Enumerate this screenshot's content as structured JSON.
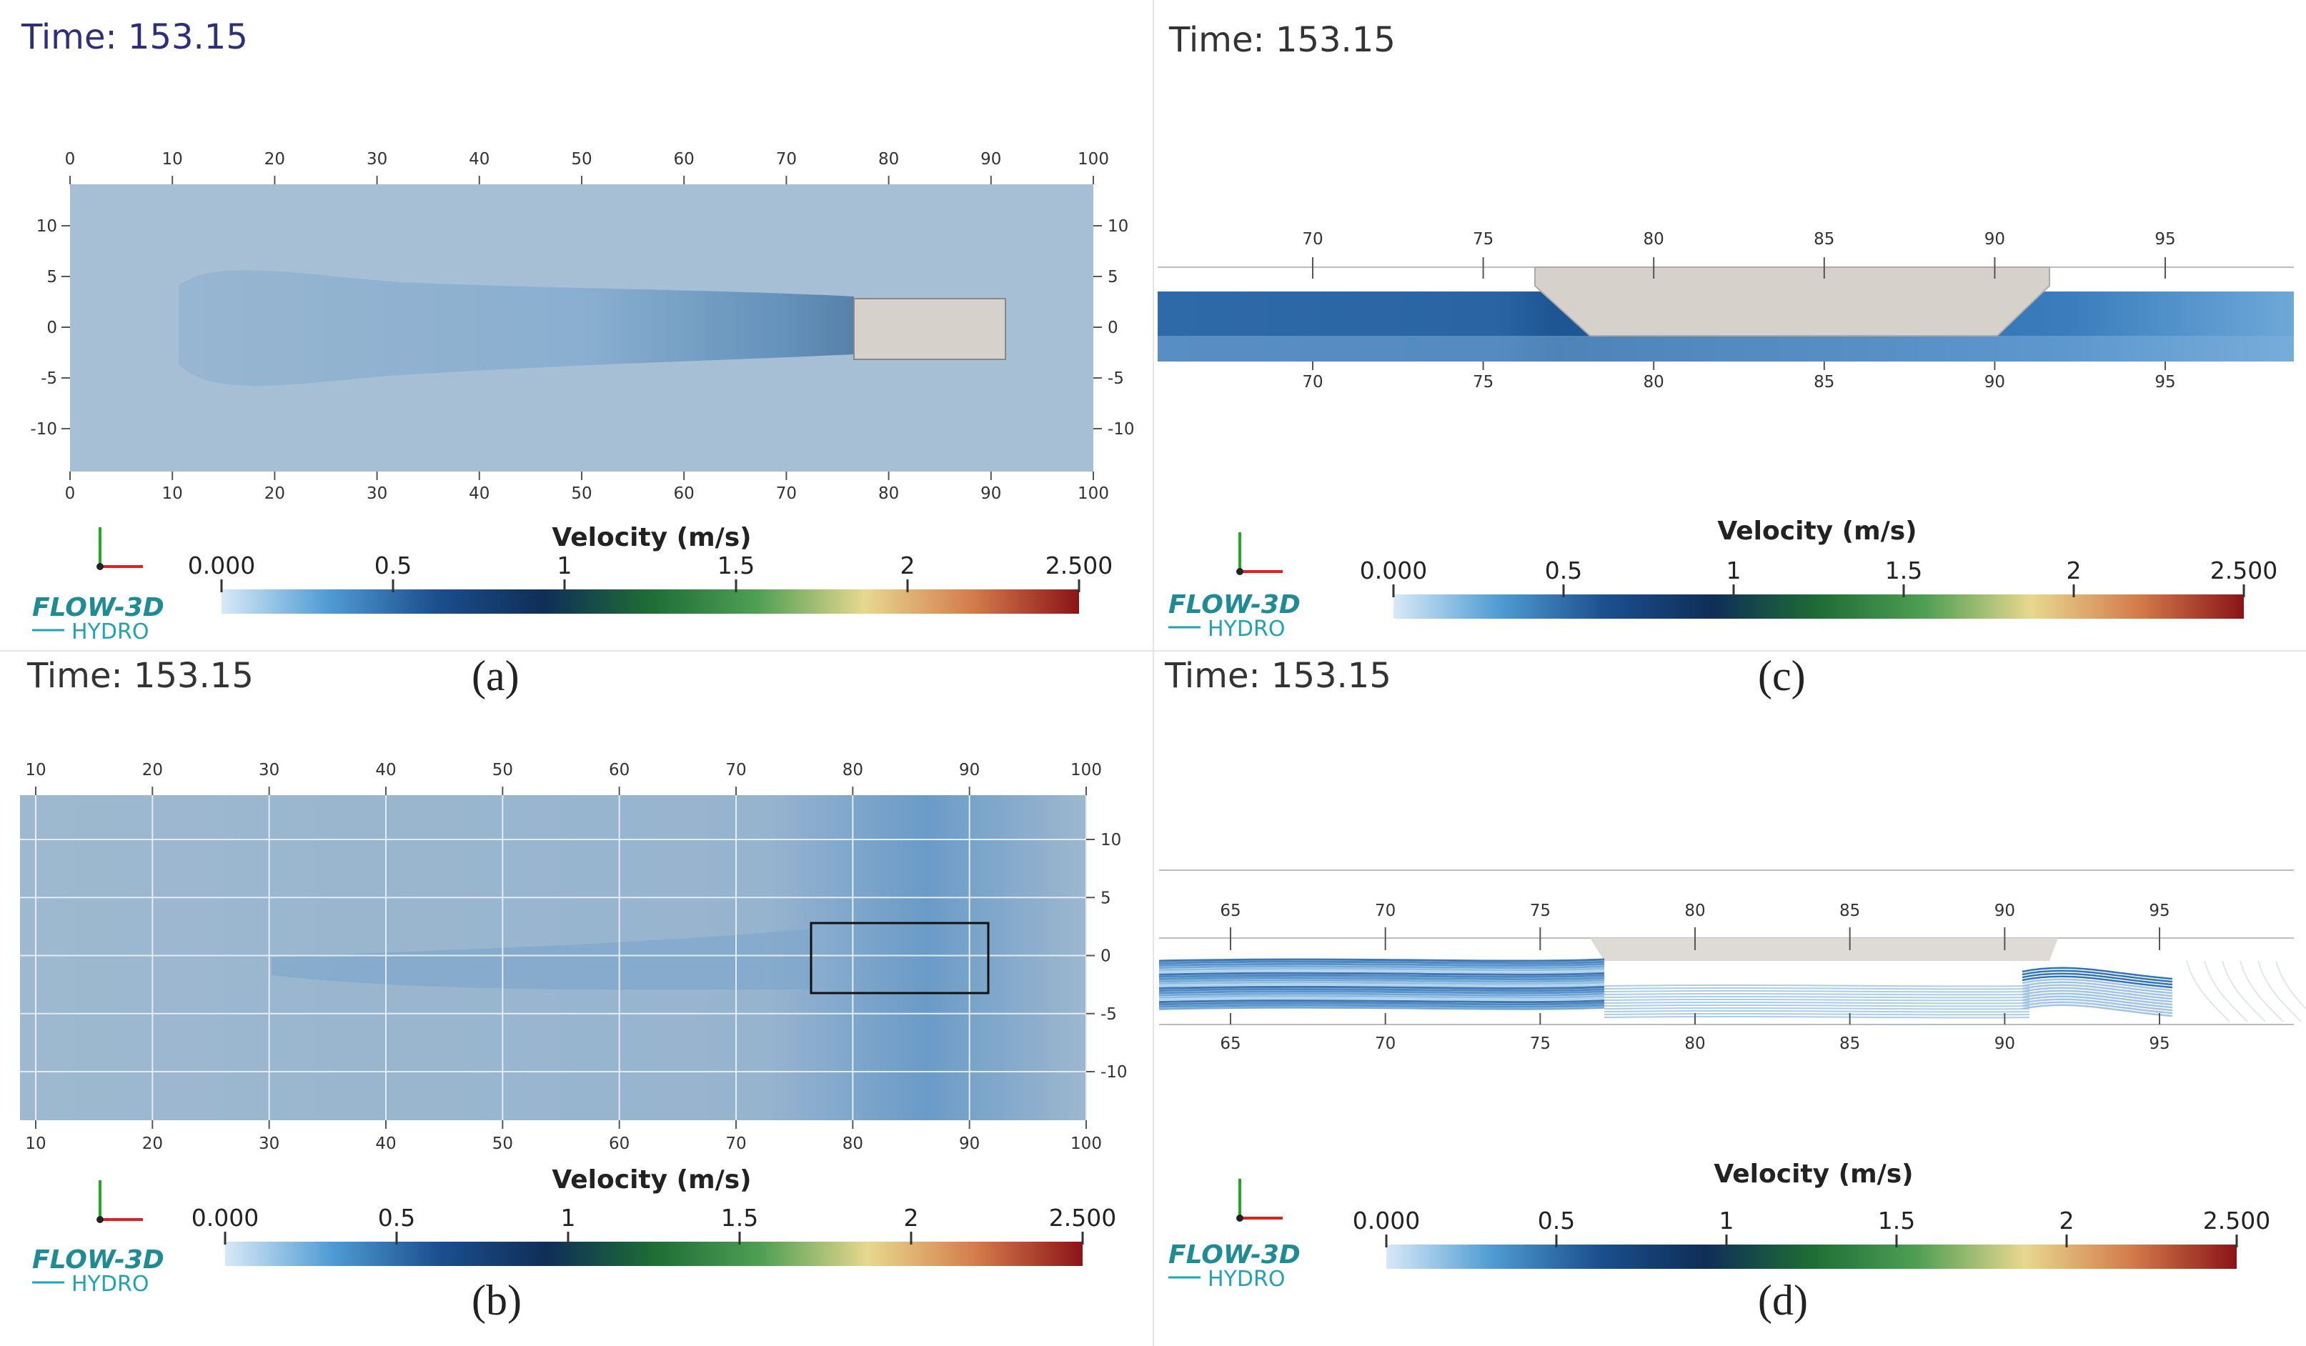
{
  "colorbar_colors": [
    "#d8e9f7",
    "#4f9bd3",
    "#1b4f8e",
    "#0f2e57",
    "#1e6d36",
    "#4f9f54",
    "#e7d88e",
    "#d47c4b",
    "#8b1418"
  ],
  "panels": [
    {
      "id": "a",
      "time": "Time: 153.15",
      "caption": "(a)",
      "view": "plan",
      "x_ticks_top": [
        "0",
        "10",
        "20",
        "30",
        "40",
        "50",
        "60",
        "70",
        "80",
        "90",
        "100"
      ],
      "x_ticks_bottom": [
        "0",
        "10",
        "20",
        "30",
        "40",
        "50",
        "60",
        "70",
        "80",
        "90",
        "100"
      ],
      "y_ticks_left": [
        "10",
        "5",
        "0",
        "-5",
        "-10"
      ],
      "y_ticks_right": [
        "10",
        "5",
        "0",
        "-5",
        "-10"
      ],
      "colorbar": {
        "title": "Velocity (m/s)",
        "ticks": [
          "0.000",
          "0.5",
          "1",
          "1.5",
          "2",
          "2.500"
        ]
      },
      "logo": {
        "line1": "FLOW-3D",
        "line2": "HYDRO"
      }
    },
    {
      "id": "b",
      "time": "Time: 153.15",
      "caption": "(b)",
      "view": "plan-grid",
      "x_ticks_top": [
        "10",
        "20",
        "30",
        "40",
        "50",
        "60",
        "70",
        "80",
        "90",
        "100"
      ],
      "x_ticks_bottom": [
        "10",
        "20",
        "30",
        "40",
        "50",
        "60",
        "70",
        "80",
        "90",
        "100"
      ],
      "y_ticks_right": [
        "10",
        "5",
        "0",
        "-5",
        "-10"
      ],
      "colorbar": {
        "title": "Velocity (m/s)",
        "ticks": [
          "0.000",
          "0.5",
          "1",
          "1.5",
          "2",
          "2.500"
        ]
      },
      "logo": {
        "line1": "FLOW-3D",
        "line2": "HYDRO"
      }
    },
    {
      "id": "c",
      "time": "Time: 153.15",
      "caption": "(c)",
      "view": "profile",
      "x_ticks_top": [
        "70",
        "75",
        "80",
        "85",
        "90",
        "95"
      ],
      "x_ticks_bottom": [
        "70",
        "75",
        "80",
        "85",
        "90",
        "95"
      ],
      "colorbar": {
        "title": "Velocity (m/s)",
        "ticks": [
          "0.000",
          "0.5",
          "1",
          "1.5",
          "2",
          "2.500"
        ]
      },
      "logo": {
        "line1": "FLOW-3D",
        "line2": "HYDRO"
      }
    },
    {
      "id": "d",
      "time": "Time: 153.15",
      "caption": "(d)",
      "view": "profile-streamlines",
      "x_ticks_top": [
        "65",
        "70",
        "75",
        "80",
        "85",
        "90",
        "95"
      ],
      "x_ticks_bottom": [
        "65",
        "70",
        "75",
        "80",
        "85",
        "90",
        "95"
      ],
      "colorbar": {
        "title": "Velocity (m/s)",
        "ticks": [
          "0.000",
          "0.5",
          "1",
          "1.5",
          "2",
          "2.500"
        ]
      },
      "logo": {
        "line1": "FLOW-3D",
        "line2": "HYDRO"
      }
    }
  ],
  "chart_data": [
    {
      "type": "heatmap",
      "panel": "a",
      "field": "velocity",
      "x_range": [
        0,
        100
      ],
      "y_range": [
        -14,
        14
      ],
      "obstacle_x": [
        77,
        91
      ],
      "obstacle_y": [
        -3,
        3
      ],
      "colorbar_range": [
        0,
        2.5
      ]
    },
    {
      "type": "heatmap",
      "panel": "b",
      "field": "velocity",
      "x_range": [
        10,
        100
      ],
      "y_range": [
        -14,
        14
      ],
      "obstacle_x": [
        77,
        92
      ],
      "obstacle_y": [
        -3,
        3
      ],
      "colorbar_range": [
        0,
        2.5
      ]
    },
    {
      "type": "heatmap",
      "panel": "c",
      "field": "velocity",
      "x_range": [
        65.5,
        99
      ],
      "obstacle_x": [
        76.5,
        91.5
      ],
      "colorbar_range": [
        0,
        2.5
      ]
    },
    {
      "type": "heatmap",
      "panel": "d",
      "field": "velocity-streamlines",
      "x_range": [
        62.5,
        98.5
      ],
      "obstacle_x": [
        77,
        92
      ],
      "colorbar_range": [
        0,
        2.5
      ]
    }
  ]
}
